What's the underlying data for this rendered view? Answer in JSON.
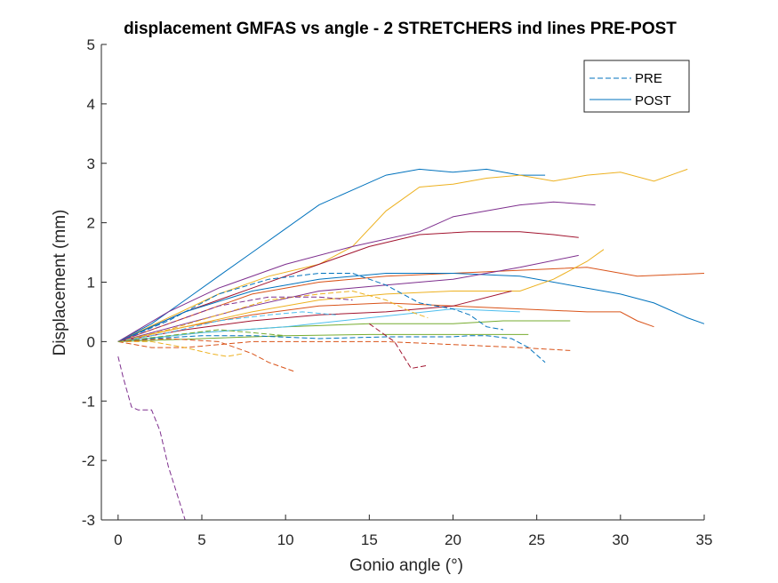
{
  "chart_data": {
    "type": "line",
    "title": "displacement GMFAS vs angle - 2 STRETCHERS ind lines PRE-POST",
    "xlabel": "Gonio angle (°)",
    "ylabel": "Displacement (mm)",
    "xlim": [
      -1,
      35
    ],
    "ylim": [
      -3,
      5
    ],
    "xticks": [
      0,
      5,
      10,
      15,
      20,
      25,
      30,
      35
    ],
    "yticks": [
      -3,
      -2,
      -1,
      0,
      1,
      2,
      3,
      4,
      5
    ],
    "grid": false,
    "legend": {
      "placement": "top-right",
      "entries": [
        {
          "label": "PRE",
          "style": "dashed",
          "color": "#0072BD"
        },
        {
          "label": "POST",
          "style": "solid",
          "color": "#0072BD"
        }
      ]
    },
    "series": [
      {
        "style": "solid",
        "color": "#0072BD",
        "points": [
          [
            0,
            0
          ],
          [
            2,
            0.3
          ],
          [
            4,
            0.7
          ],
          [
            6,
            1.1
          ],
          [
            8,
            1.5
          ],
          [
            10,
            1.9
          ],
          [
            12,
            2.3
          ],
          [
            14,
            2.55
          ],
          [
            16,
            2.8
          ],
          [
            18,
            2.9
          ],
          [
            20,
            2.85
          ],
          [
            22,
            2.9
          ],
          [
            24,
            2.8
          ],
          [
            25.5,
            2.8
          ]
        ]
      },
      {
        "style": "solid",
        "color": "#EDB120",
        "points": [
          [
            0,
            0
          ],
          [
            3,
            0.4
          ],
          [
            6,
            0.8
          ],
          [
            9,
            1.1
          ],
          [
            12,
            1.3
          ],
          [
            14,
            1.6
          ],
          [
            16,
            2.2
          ],
          [
            18,
            2.6
          ],
          [
            20,
            2.65
          ],
          [
            22,
            2.75
          ],
          [
            24,
            2.8
          ],
          [
            26,
            2.7
          ],
          [
            28,
            2.8
          ],
          [
            30,
            2.85
          ],
          [
            32,
            2.7
          ],
          [
            34,
            2.9
          ]
        ]
      },
      {
        "style": "solid",
        "color": "#7E2F8E",
        "points": [
          [
            0,
            0
          ],
          [
            3,
            0.5
          ],
          [
            6,
            0.9
          ],
          [
            10,
            1.3
          ],
          [
            14,
            1.6
          ],
          [
            18,
            1.85
          ],
          [
            20,
            2.1
          ],
          [
            22,
            2.2
          ],
          [
            24,
            2.3
          ],
          [
            26,
            2.35
          ],
          [
            28.5,
            2.3
          ]
        ]
      },
      {
        "style": "solid",
        "color": "#A2142F",
        "points": [
          [
            0,
            0
          ],
          [
            4,
            0.5
          ],
          [
            8,
            0.9
          ],
          [
            12,
            1.3
          ],
          [
            15,
            1.6
          ],
          [
            18,
            1.8
          ],
          [
            21,
            1.85
          ],
          [
            24,
            1.85
          ],
          [
            26,
            1.8
          ],
          [
            27.5,
            1.75
          ]
        ]
      },
      {
        "style": "solid",
        "color": "#D95319",
        "points": [
          [
            0,
            0
          ],
          [
            4,
            0.4
          ],
          [
            8,
            0.8
          ],
          [
            12,
            1.0
          ],
          [
            16,
            1.1
          ],
          [
            20,
            1.15
          ],
          [
            24,
            1.2
          ],
          [
            28,
            1.25
          ],
          [
            31,
            1.1
          ],
          [
            35,
            1.15
          ]
        ]
      },
      {
        "style": "solid",
        "color": "#0072BD",
        "points": [
          [
            0,
            0
          ],
          [
            4,
            0.5
          ],
          [
            8,
            0.85
          ],
          [
            12,
            1.05
          ],
          [
            16,
            1.15
          ],
          [
            20,
            1.15
          ],
          [
            24,
            1.1
          ],
          [
            28,
            0.9
          ],
          [
            30,
            0.8
          ],
          [
            32,
            0.65
          ],
          [
            34,
            0.4
          ],
          [
            35,
            0.3
          ]
        ]
      },
      {
        "style": "solid",
        "color": "#D95319",
        "points": [
          [
            0,
            0
          ],
          [
            4,
            0.25
          ],
          [
            8,
            0.45
          ],
          [
            12,
            0.6
          ],
          [
            16,
            0.65
          ],
          [
            20,
            0.6
          ],
          [
            24,
            0.55
          ],
          [
            28,
            0.5
          ],
          [
            30,
            0.5
          ],
          [
            31,
            0.35
          ],
          [
            32,
            0.25
          ]
        ]
      },
      {
        "style": "solid",
        "color": "#77AC30",
        "points": [
          [
            0,
            0
          ],
          [
            5,
            0.15
          ],
          [
            10,
            0.25
          ],
          [
            15,
            0.3
          ],
          [
            20,
            0.3
          ],
          [
            23,
            0.35
          ],
          [
            27,
            0.35
          ]
        ]
      },
      {
        "style": "solid",
        "color": "#4DBEEE",
        "points": [
          [
            0,
            0
          ],
          [
            5,
            0.15
          ],
          [
            10,
            0.25
          ],
          [
            15,
            0.4
          ],
          [
            20,
            0.55
          ],
          [
            24,
            0.5
          ]
        ]
      },
      {
        "style": "solid",
        "color": "#EDB120",
        "points": [
          [
            0,
            0
          ],
          [
            4,
            0.25
          ],
          [
            8,
            0.5
          ],
          [
            12,
            0.7
          ],
          [
            16,
            0.8
          ],
          [
            20,
            0.85
          ],
          [
            24,
            0.85
          ],
          [
            26,
            1.05
          ],
          [
            28,
            1.35
          ],
          [
            29,
            1.55
          ]
        ]
      },
      {
        "style": "solid",
        "color": "#7E2F8E",
        "points": [
          [
            0,
            0
          ],
          [
            4,
            0.3
          ],
          [
            8,
            0.6
          ],
          [
            12,
            0.85
          ],
          [
            16,
            0.95
          ],
          [
            20,
            1.05
          ],
          [
            24,
            1.25
          ],
          [
            27.5,
            1.45
          ]
        ]
      },
      {
        "style": "solid",
        "color": "#A2142F",
        "points": [
          [
            0,
            0
          ],
          [
            4,
            0.2
          ],
          [
            8,
            0.35
          ],
          [
            12,
            0.45
          ],
          [
            16,
            0.5
          ],
          [
            20,
            0.6
          ],
          [
            23.5,
            0.85
          ]
        ]
      },
      {
        "style": "solid",
        "color": "#77AC30",
        "points": [
          [
            0,
            0
          ],
          [
            5,
            0.05
          ],
          [
            10,
            0.1
          ],
          [
            15,
            0.12
          ],
          [
            20,
            0.12
          ],
          [
            24.5,
            0.12
          ]
        ]
      },
      {
        "style": "dashed",
        "color": "#7E2F8E",
        "points": [
          [
            0,
            -0.25
          ],
          [
            0.3,
            -0.6
          ],
          [
            0.8,
            -1.1
          ],
          [
            1.2,
            -1.15
          ],
          [
            2,
            -1.15
          ],
          [
            2.5,
            -1.5
          ],
          [
            3,
            -2.1
          ],
          [
            3.5,
            -2.55
          ],
          [
            4,
            -3
          ]
        ]
      },
      {
        "style": "dashed",
        "color": "#0072BD",
        "points": [
          [
            0,
            0
          ],
          [
            2,
            0.05
          ],
          [
            5,
            0.1
          ],
          [
            8,
            0.1
          ],
          [
            12,
            0.05
          ],
          [
            16,
            0.08
          ],
          [
            20,
            0.08
          ],
          [
            21,
            0.1
          ],
          [
            22,
            0.1
          ],
          [
            23.5,
            0.05
          ],
          [
            24.5,
            -0.1
          ],
          [
            25.5,
            -0.35
          ]
        ]
      },
      {
        "style": "dashed",
        "color": "#D95319",
        "points": [
          [
            0,
            0
          ],
          [
            2,
            -0.1
          ],
          [
            4,
            -0.1
          ],
          [
            8,
            0.0
          ],
          [
            12,
            0.0
          ],
          [
            16,
            0.0
          ],
          [
            20,
            -0.05
          ],
          [
            24,
            -0.1
          ],
          [
            27,
            -0.15
          ]
        ]
      },
      {
        "style": "dashed",
        "color": "#EDB120",
        "points": [
          [
            0,
            0
          ],
          [
            2,
            0.0
          ],
          [
            4,
            -0.1
          ],
          [
            5.5,
            -0.2
          ],
          [
            6.5,
            -0.25
          ],
          [
            7.5,
            -0.2
          ]
        ]
      },
      {
        "style": "dashed",
        "color": "#D95319",
        "points": [
          [
            0,
            0
          ],
          [
            3,
            0.05
          ],
          [
            6,
            0.0
          ],
          [
            8,
            -0.2
          ],
          [
            9,
            -0.35
          ],
          [
            10.5,
            -0.5
          ]
        ]
      },
      {
        "style": "dashed",
        "color": "#A2142F",
        "points": [
          [
            15,
            0.3
          ],
          [
            16.5,
            0.0
          ],
          [
            17.5,
            -0.45
          ],
          [
            18.5,
            -0.4
          ]
        ]
      },
      {
        "style": "dashed",
        "color": "#0072BD",
        "points": [
          [
            0,
            0
          ],
          [
            3,
            0.35
          ],
          [
            6,
            0.8
          ],
          [
            9,
            1.05
          ],
          [
            12,
            1.15
          ],
          [
            14,
            1.15
          ],
          [
            16,
            0.95
          ],
          [
            18,
            0.65
          ],
          [
            20,
            0.55
          ],
          [
            21,
            0.45
          ],
          [
            22,
            0.25
          ],
          [
            23,
            0.2
          ]
        ]
      },
      {
        "style": "dashed",
        "color": "#EDB120",
        "points": [
          [
            0,
            0
          ],
          [
            3,
            0.2
          ],
          [
            6,
            0.45
          ],
          [
            9,
            0.7
          ],
          [
            12,
            0.8
          ],
          [
            14,
            0.85
          ],
          [
            16,
            0.7
          ],
          [
            17.5,
            0.5
          ],
          [
            18.5,
            0.4
          ]
        ]
      },
      {
        "style": "dashed",
        "color": "#4DBEEE",
        "points": [
          [
            0,
            0
          ],
          [
            3,
            0.15
          ],
          [
            6,
            0.35
          ],
          [
            9,
            0.45
          ],
          [
            11,
            0.5
          ],
          [
            13,
            0.45
          ]
        ]
      },
      {
        "style": "dashed",
        "color": "#7E2F8E",
        "points": [
          [
            0,
            0
          ],
          [
            3,
            0.3
          ],
          [
            6,
            0.6
          ],
          [
            9,
            0.75
          ],
          [
            12,
            0.75
          ],
          [
            14,
            0.7
          ]
        ]
      },
      {
        "style": "dashed",
        "color": "#77AC30",
        "points": [
          [
            0,
            0
          ],
          [
            3,
            0.1
          ],
          [
            6,
            0.2
          ],
          [
            8,
            0.15
          ],
          [
            10,
            0.1
          ]
        ]
      }
    ]
  }
}
